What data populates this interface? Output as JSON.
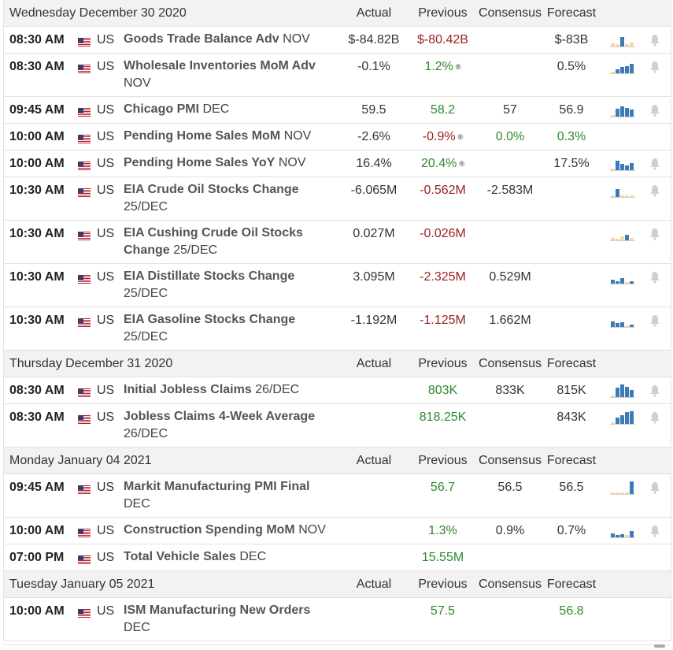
{
  "columns": {
    "actual": "Actual",
    "previous": "Previous",
    "consensus": "Consensus",
    "forecast": "Forecast"
  },
  "days": [
    {
      "label": "Wednesday December 30 2020",
      "events": [
        {
          "time": "08:30 AM",
          "country": "US",
          "name": "Goods Trade Balance Adv",
          "period": "NOV",
          "actual": "$-84.82B",
          "previous": "$-80.42B",
          "previous_color": "red",
          "consensus": "",
          "consensus_color": "dark",
          "forecast": "$-83B",
          "forecast_color": "dark",
          "revised": false,
          "spark": "mixed-light",
          "bell": true
        },
        {
          "time": "08:30 AM",
          "country": "US",
          "name": "Wholesale Inventories MoM Adv",
          "period": "NOV",
          "actual": "-0.1%",
          "previous": "1.2%",
          "previous_color": "green",
          "consensus": "",
          "consensus_color": "dark",
          "forecast": "0.5%",
          "forecast_color": "dark",
          "revised": true,
          "spark": "blue-up",
          "bell": true
        },
        {
          "time": "09:45 AM",
          "country": "US",
          "name": "Chicago PMI",
          "period": "DEC",
          "actual": "59.5",
          "previous": "58.2",
          "previous_color": "green",
          "consensus": "57",
          "consensus_color": "dark",
          "forecast": "56.9",
          "forecast_color": "dark",
          "revised": false,
          "spark": "blue-tall",
          "bell": true
        },
        {
          "time": "10:00 AM",
          "country": "US",
          "name": "Pending Home Sales MoM",
          "period": "NOV",
          "actual": "-2.6%",
          "previous": "-0.9%",
          "previous_color": "red",
          "consensus": "0.0%",
          "consensus_color": "green",
          "forecast": "0.3%",
          "forecast_color": "green",
          "revised": true,
          "spark": "none",
          "bell": false
        },
        {
          "time": "10:00 AM",
          "country": "US",
          "name": "Pending Home Sales YoY",
          "period": "NOV",
          "actual": "16.4%",
          "previous": "20.4%",
          "previous_color": "green",
          "consensus": "",
          "consensus_color": "dark",
          "forecast": "17.5%",
          "forecast_color": "dark",
          "revised": true,
          "spark": "blue-mid",
          "bell": true
        },
        {
          "time": "10:30 AM",
          "country": "US",
          "name": "EIA Crude Oil Stocks Change",
          "period": "25/DEC",
          "actual": "-6.065M",
          "previous": "-0.562M",
          "previous_color": "red",
          "consensus": "-2.583M",
          "consensus_color": "dark",
          "forecast": "",
          "forecast_color": "dark",
          "revised": false,
          "spark": "blue-one",
          "bell": true
        },
        {
          "time": "10:30 AM",
          "country": "US",
          "name": "EIA Cushing Crude Oil Stocks Change",
          "period": "25/DEC",
          "actual": "0.027M",
          "previous": "-0.026M",
          "previous_color": "red",
          "consensus": "",
          "consensus_color": "dark",
          "forecast": "",
          "forecast_color": "dark",
          "revised": false,
          "spark": "mixed-light2",
          "bell": true
        },
        {
          "time": "10:30 AM",
          "country": "US",
          "name": "EIA Distillate Stocks Change",
          "period": "25/DEC",
          "actual": "3.095M",
          "previous": "-2.325M",
          "previous_color": "red",
          "consensus": "0.529M",
          "consensus_color": "dark",
          "forecast": "",
          "forecast_color": "dark",
          "revised": false,
          "spark": "blue-small",
          "bell": true
        },
        {
          "time": "10:30 AM",
          "country": "US",
          "name": "EIA Gasoline Stocks Change",
          "period": "25/DEC",
          "actual": "-1.192M",
          "previous": "-1.125M",
          "previous_color": "red",
          "consensus": "1.662M",
          "consensus_color": "dark",
          "forecast": "",
          "forecast_color": "dark",
          "revised": false,
          "spark": "blue-small2",
          "bell": true
        }
      ]
    },
    {
      "label": "Thursday December 31 2020",
      "events": [
        {
          "time": "08:30 AM",
          "country": "US",
          "name": "Initial Jobless Claims",
          "period": "26/DEC",
          "actual": "",
          "previous": "803K",
          "previous_color": "green",
          "consensus": "833K",
          "consensus_color": "dark",
          "forecast": "815K",
          "forecast_color": "dark",
          "revised": false,
          "spark": "blue-tall2",
          "bell": true
        },
        {
          "time": "08:30 AM",
          "country": "US",
          "name": "Jobless Claims 4-Week Average",
          "period": "26/DEC",
          "actual": "",
          "previous": "818.25K",
          "previous_color": "green",
          "consensus": "",
          "consensus_color": "dark",
          "forecast": "843K",
          "forecast_color": "dark",
          "revised": false,
          "spark": "blue-up2",
          "bell": true
        }
      ]
    },
    {
      "label": "Monday January 04 2021",
      "events": [
        {
          "time": "09:45 AM",
          "country": "US",
          "name": "Markit Manufacturing PMI Final",
          "period": "DEC",
          "actual": "",
          "previous": "56.7",
          "previous_color": "green",
          "consensus": "56.5",
          "consensus_color": "dark",
          "forecast": "56.5",
          "forecast_color": "dark",
          "revised": false,
          "spark": "blue-last",
          "bell": true
        },
        {
          "time": "10:00 AM",
          "country": "US",
          "name": "Construction Spending MoM",
          "period": "NOV",
          "actual": "",
          "previous": "1.3%",
          "previous_color": "green",
          "consensus": "0.9%",
          "consensus_color": "dark",
          "forecast": "0.7%",
          "forecast_color": "dark",
          "revised": false,
          "spark": "mixed-blue",
          "bell": true
        },
        {
          "time": "07:00 PM",
          "country": "US",
          "name": "Total Vehicle Sales",
          "period": "DEC",
          "actual": "",
          "previous": "15.55M",
          "previous_color": "green",
          "consensus": "",
          "consensus_color": "dark",
          "forecast": "",
          "forecast_color": "dark",
          "revised": false,
          "spark": "none",
          "bell": false
        }
      ]
    },
    {
      "label": "Tuesday January 05 2021",
      "events": [
        {
          "time": "10:00 AM",
          "country": "US",
          "name": "ISM Manufacturing New Orders",
          "period": "DEC",
          "actual": "",
          "previous": "57.5",
          "previous_color": "green",
          "consensus": "",
          "consensus_color": "dark",
          "forecast": "56.8",
          "forecast_color": "green",
          "revised": false,
          "spark": "none",
          "bell": false
        }
      ]
    }
  ],
  "colors": {
    "blue": "#3d7ab8",
    "light": "#f5d9a8",
    "bell": "#cfcfcf",
    "header_bg": "#f2f2f2"
  }
}
